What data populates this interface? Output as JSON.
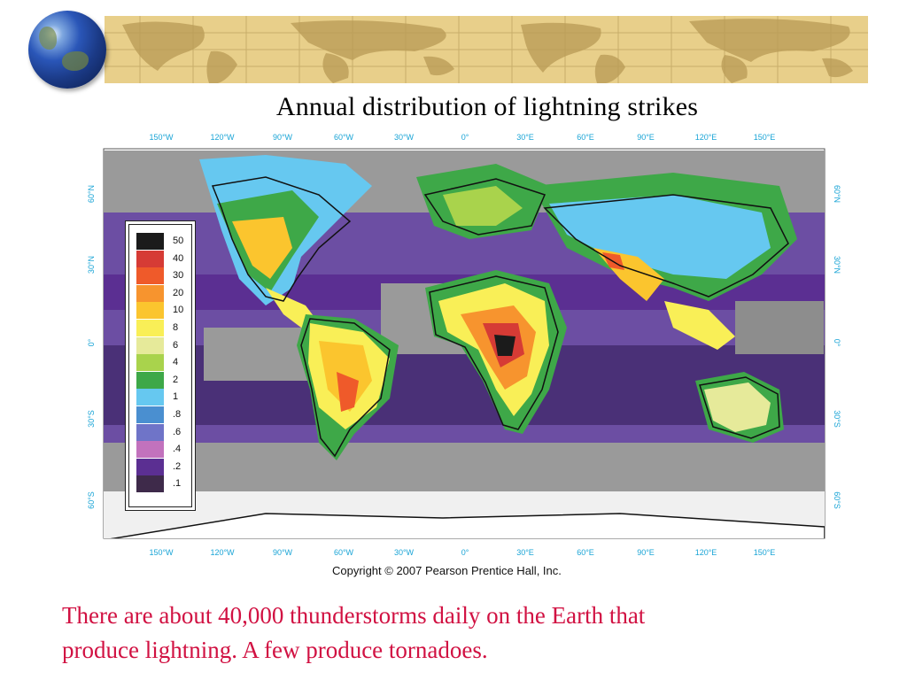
{
  "slide": {
    "title": "Annual distribution of lightning strikes",
    "copyright": "Copyright © 2007 Pearson Prentice Hall, Inc.",
    "caption_line1": "There are about 40,000 thunderstorms daily on the Earth that",
    "caption_line2": "produce lightning.  A few produce tornadoes."
  },
  "map": {
    "longitude_labels": [
      "150°W",
      "120°W",
      "90°W",
      "60°W",
      "30°W",
      "0°",
      "30°E",
      "60°E",
      "90°E",
      "120°E",
      "150°E"
    ],
    "latitude_labels": [
      "60°N",
      "30°N",
      "0°",
      "30°S",
      "60°S"
    ],
    "tick_color": "#19a4d6"
  },
  "legend": {
    "entries": [
      {
        "label": "50",
        "color": "#1b1b1b"
      },
      {
        "label": "40",
        "color": "#d63b35"
      },
      {
        "label": "30",
        "color": "#ef5a2a"
      },
      {
        "label": "20",
        "color": "#f7942e"
      },
      {
        "label": "10",
        "color": "#fbc52e"
      },
      {
        "label": "8",
        "color": "#f9ef57"
      },
      {
        "label": "6",
        "color": "#e6ea9a"
      },
      {
        "label": "4",
        "color": "#a9d34c"
      },
      {
        "label": "2",
        "color": "#3ea848"
      },
      {
        "label": "1",
        "color": "#66c8f0"
      },
      {
        "label": ".8",
        "color": "#4a8fd0"
      },
      {
        "label": ".6",
        "color": "#6f74c8"
      },
      {
        "label": ".4",
        "color": "#c272bd"
      },
      {
        "label": ".2",
        "color": "#5b2f92"
      },
      {
        "label": ".1",
        "color": "#3e2a4a"
      }
    ]
  }
}
